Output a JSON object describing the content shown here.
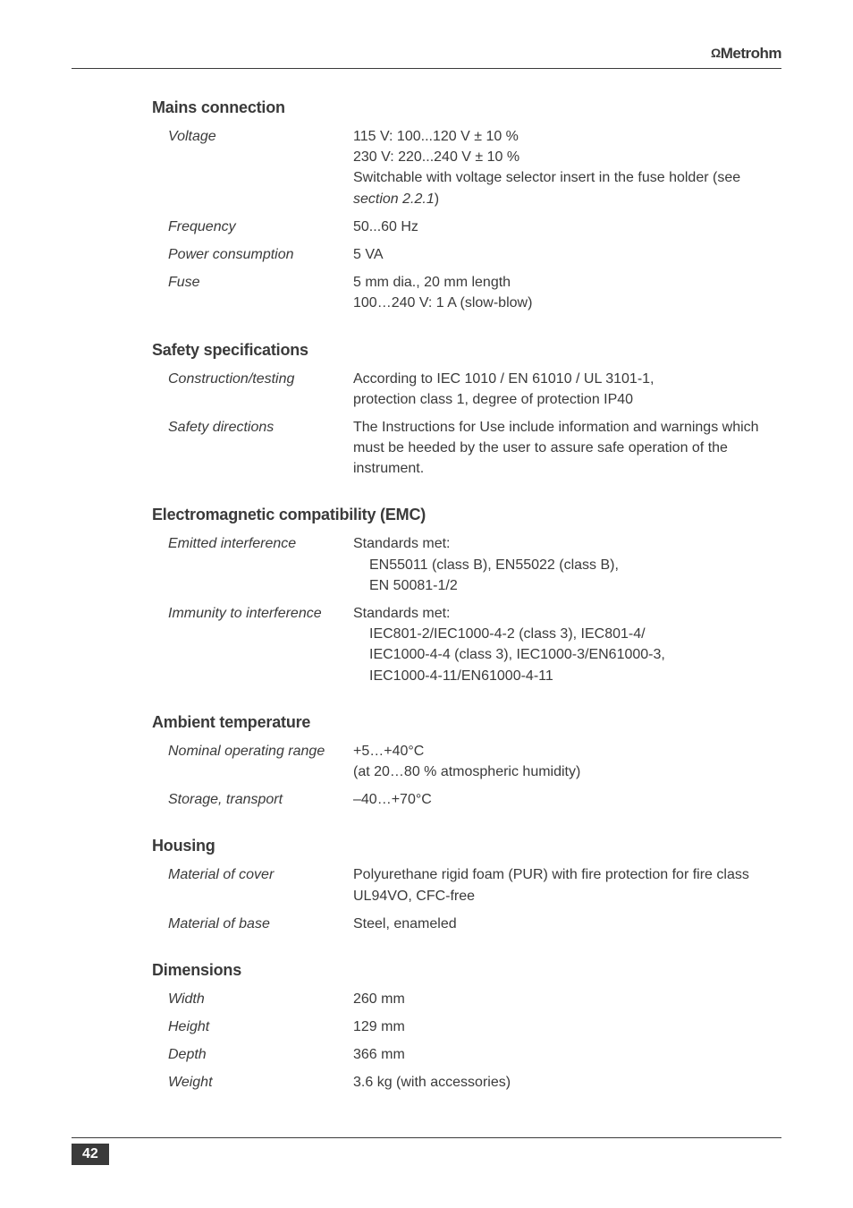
{
  "brand": "Metrohm",
  "page_number": "42",
  "sections": {
    "mains": {
      "title": "Mains connection",
      "voltage_label": "Voltage",
      "voltage_line1": "115 V:  100...120 V ± 10 %",
      "voltage_line2": "230 V:  220...240 V ± 10 %",
      "voltage_line3": "Switchable with voltage selector insert in the fuse holder (see ",
      "voltage_section_ref": "section 2.2.1",
      "voltage_close": ")",
      "frequency_label": "Frequency",
      "frequency_value": "50...60 Hz",
      "power_label": "Power consumption",
      "power_value": "5 VA",
      "fuse_label": "Fuse",
      "fuse_line1": "5 mm dia., 20 mm length",
      "fuse_line2": "100…240 V: 1 A (slow-blow)"
    },
    "safety": {
      "title": "Safety specifications",
      "construction_label": "Construction/testing",
      "construction_line1": "According to IEC 1010 / EN 61010 / UL 3101-1,",
      "construction_line2": "protection class 1, degree of protection  IP40",
      "directions_label": "Safety directions",
      "directions_value": "The Instructions for Use include information and warnings which must be heeded by the user to assure safe operation of the instrument."
    },
    "emc": {
      "title": "Electromagnetic compatibility (EMC)",
      "emitted_label": "Emitted interference",
      "emitted_line1": "Standards met:",
      "emitted_line2": "EN55011 (class B), EN55022 (class B),",
      "emitted_line3": "EN 50081-1/2",
      "immunity_label": "Immunity to interference",
      "immunity_line1": "Standards met:",
      "immunity_line2": "IEC801-2/IEC1000-4-2 (class 3), IEC801-4/",
      "immunity_line3": "IEC1000-4-4 (class 3), IEC1000-3/EN61000-3,",
      "immunity_line4": "IEC1000-4-11/EN61000-4-11"
    },
    "ambient": {
      "title": "Ambient temperature",
      "nominal_label": "Nominal operating range",
      "nominal_line1": "+5…+40°C",
      "nominal_line2": "(at 20…80 % atmospheric humidity)",
      "storage_label": "Storage, transport",
      "storage_value": "–40…+70°C"
    },
    "housing": {
      "title": "Housing",
      "cover_label": "Material of cover",
      "cover_value": "Polyurethane rigid foam (PUR) with fire protection for fire class UL94VO, CFC-free",
      "base_label": "Material of base",
      "base_value": "Steel, enameled"
    },
    "dimensions": {
      "title": "Dimensions",
      "width_label": "Width",
      "width_value": "260 mm",
      "height_label": "Height",
      "height_value": "129 mm",
      "depth_label": "Depth",
      "depth_value": "366 mm",
      "weight_label": "Weight",
      "weight_value": "3.6 kg (with accessories)"
    }
  }
}
